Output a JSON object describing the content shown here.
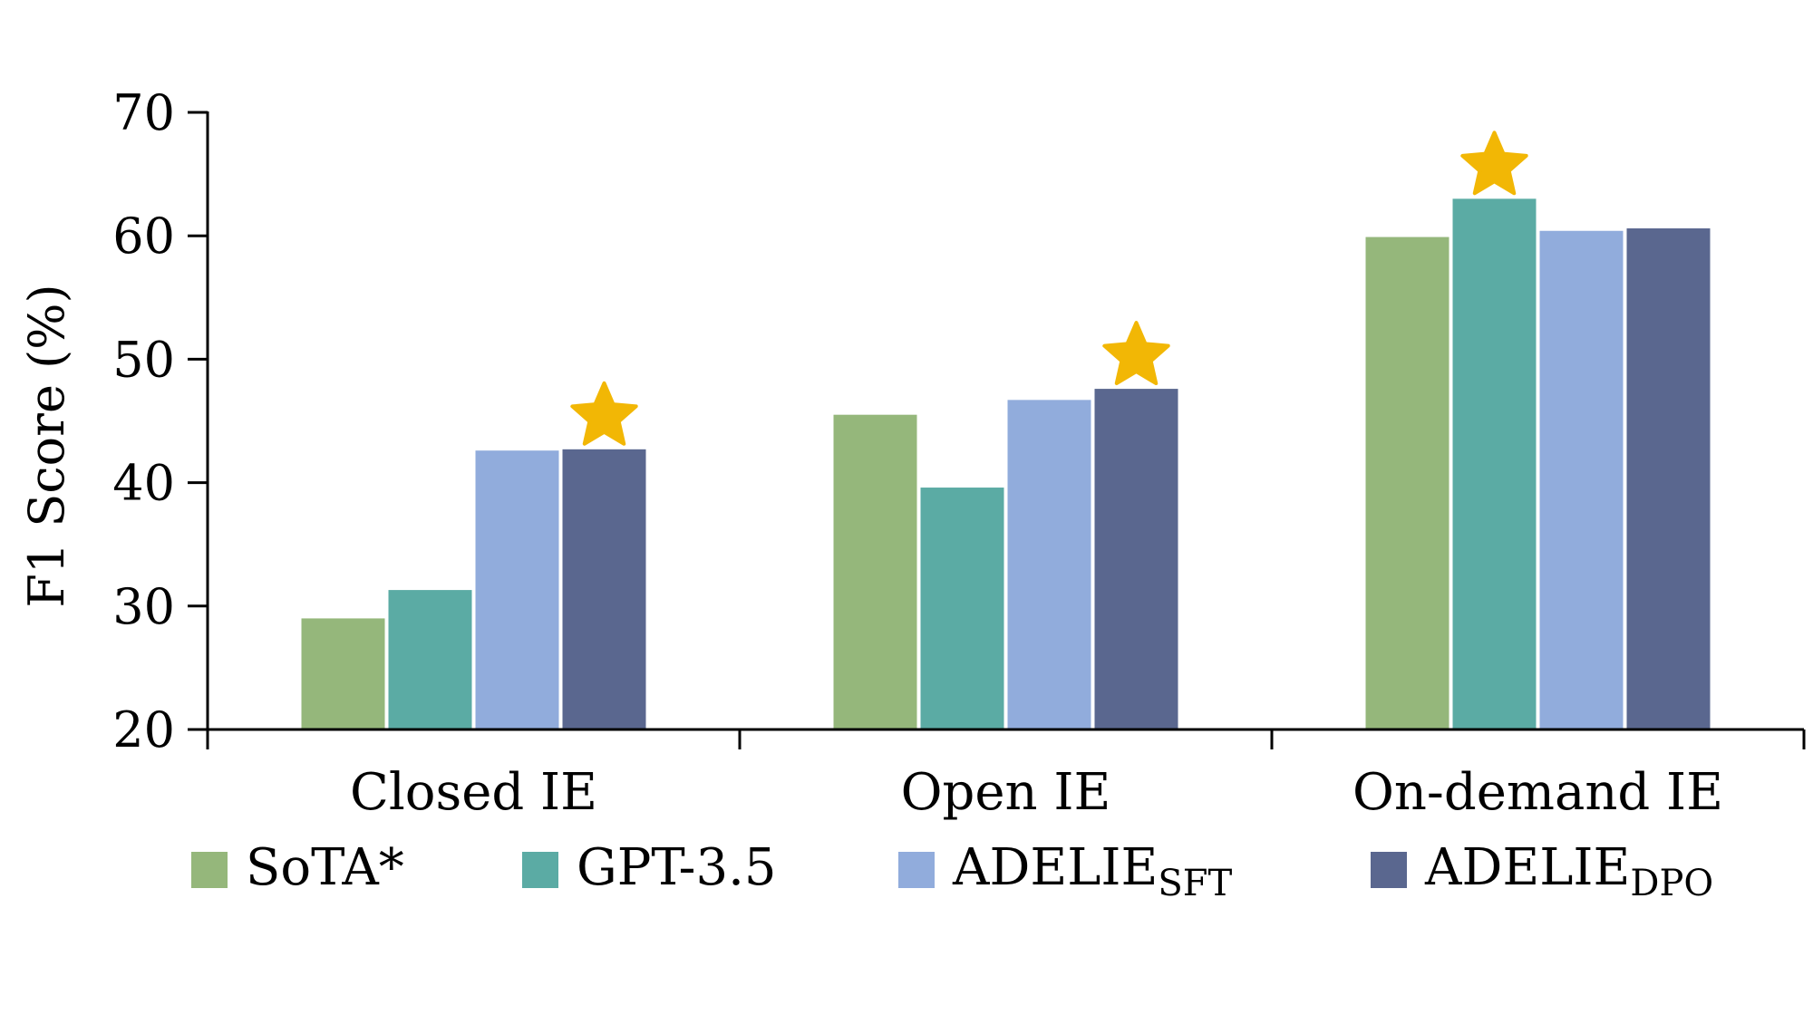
{
  "chart_data": {
    "type": "bar",
    "title": "",
    "xlabel": "",
    "ylabel": "F1 Score (%)",
    "ylim": [
      20,
      70
    ],
    "yticks": [
      20,
      30,
      40,
      50,
      60,
      70
    ],
    "grid": false,
    "legend_position": "bottom",
    "categories": [
      "Closed IE",
      "Open IE",
      "On-demand IE"
    ],
    "series": [
      {
        "name": "SoTA*",
        "name_main": "SoTA*",
        "name_sub": "",
        "color": "#95b77b",
        "values": [
          29.0,
          45.5,
          59.9
        ]
      },
      {
        "name": "GPT-3.5",
        "name_main": "GPT-3.5",
        "name_sub": "",
        "color": "#5baba4",
        "values": [
          31.3,
          39.6,
          63.0
        ]
      },
      {
        "name": "ADELIE_SFT",
        "name_main": "ADELIE",
        "name_sub": "SFT",
        "color": "#91acdc",
        "values": [
          42.6,
          46.7,
          60.4
        ]
      },
      {
        "name": "ADELIE_DPO",
        "name_main": "ADELIE",
        "name_sub": "DPO",
        "color": "#5a678f",
        "values": [
          42.7,
          47.6,
          60.6
        ]
      }
    ],
    "best_markers": [
      {
        "category": "Closed IE",
        "series": "ADELIE_DPO",
        "icon": "star-icon",
        "color": "#f2b705"
      },
      {
        "category": "Open IE",
        "series": "ADELIE_DPO",
        "icon": "star-icon",
        "color": "#f2b705"
      },
      {
        "category": "On-demand IE",
        "series": "GPT-3.5",
        "icon": "star-icon",
        "color": "#f2b705"
      }
    ]
  }
}
